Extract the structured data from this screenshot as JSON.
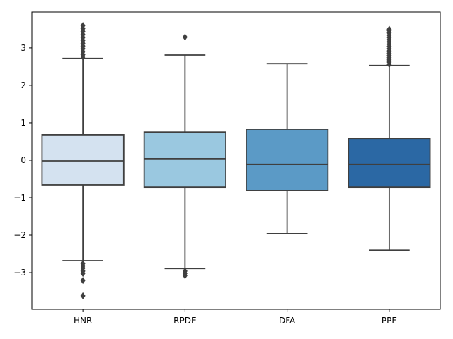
{
  "chart_data": {
    "type": "box",
    "title": "",
    "xlabel": "",
    "ylabel": "",
    "ylim": [
      -3.98,
      3.96
    ],
    "yticks": [
      -3,
      -2,
      -1,
      0,
      1,
      2,
      3
    ],
    "ytick_labels": [
      "−3",
      "−2",
      "−1",
      "0",
      "1",
      "2",
      "3"
    ],
    "grid": false,
    "categories": [
      "HNR",
      "RPDE",
      "DFA",
      "PPE"
    ],
    "boxes": [
      {
        "name": "HNR",
        "color": "#d4e2f0",
        "whisker_low": -2.68,
        "q1": -0.66,
        "median": -0.02,
        "q3": 0.68,
        "whisker_high": 2.72,
        "outliers": [
          2.76,
          2.82,
          2.9,
          2.98,
          3.05,
          3.12,
          3.2,
          3.28,
          3.36,
          3.44,
          3.52,
          3.6,
          -2.76,
          -2.82,
          -2.88,
          -2.96,
          -3.02,
          -3.21,
          -3.62
        ]
      },
      {
        "name": "RPDE",
        "color": "#9ac8e0",
        "whisker_low": -2.89,
        "q1": -0.72,
        "median": 0.04,
        "q3": 0.75,
        "whisker_high": 2.81,
        "outliers": [
          3.29,
          -2.96,
          -3.02,
          -3.08
        ]
      },
      {
        "name": "DFA",
        "color": "#5b9ac6",
        "whisker_low": -1.96,
        "q1": -0.81,
        "median": -0.11,
        "q3": 0.83,
        "whisker_high": 2.58,
        "outliers": []
      },
      {
        "name": "PPE",
        "color": "#2b68a4",
        "whisker_low": -2.4,
        "q1": -0.72,
        "median": -0.11,
        "q3": 0.58,
        "whisker_high": 2.53,
        "outliers": [
          2.56,
          2.62,
          2.68,
          2.74,
          2.8,
          2.86,
          2.92,
          2.98,
          3.04,
          3.1,
          3.16,
          3.22,
          3.28,
          3.34,
          3.4,
          3.46,
          3.5
        ]
      }
    ],
    "line_color": "#3f3f3f"
  }
}
